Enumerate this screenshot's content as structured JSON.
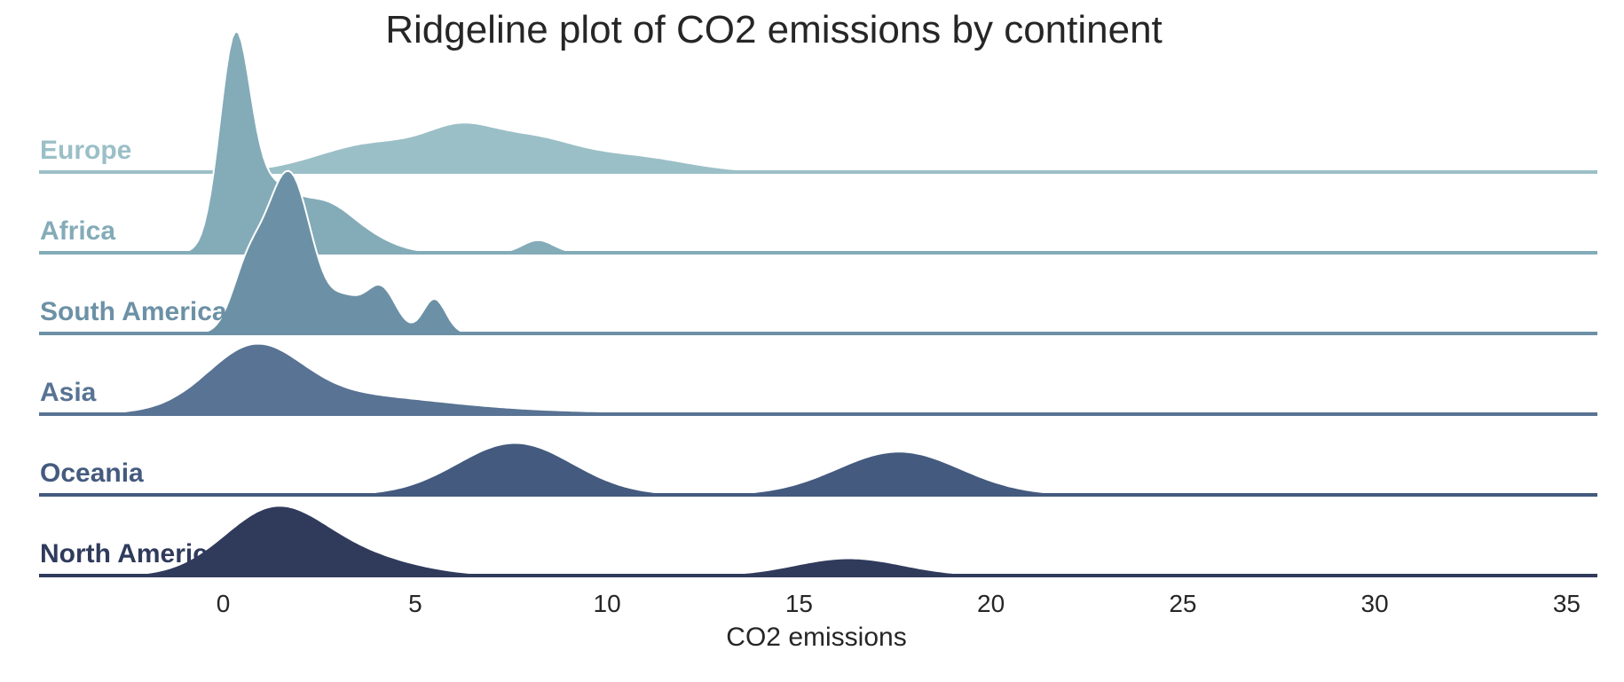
{
  "chart_data": {
    "type": "ridgeline",
    "title": "Ridgeline plot of CO2 emissions by continent",
    "xlabel": "CO2 emissions",
    "ylabel": "",
    "xlim": [
      -4.8,
      35.8
    ],
    "xticks": [
      0,
      5,
      10,
      15,
      20,
      25,
      30,
      35
    ],
    "grid": false,
    "legend": "none",
    "series": [
      {
        "name": "Europe",
        "color": "#9bbfc7",
        "peaks": [
          {
            "mu": 4.0,
            "sigma": 1.5,
            "amp": 0.5
          },
          {
            "mu": 6.2,
            "sigma": 0.9,
            "amp": 0.55
          },
          {
            "mu": 8.0,
            "sigma": 1.1,
            "amp": 0.5
          },
          {
            "mu": 10.5,
            "sigma": 1.5,
            "amp": 0.28
          }
        ]
      },
      {
        "name": "Africa",
        "color": "#84abb8",
        "peaks": [
          {
            "mu": 0.3,
            "sigma": 0.4,
            "amp": 3.5
          },
          {
            "mu": 1.2,
            "sigma": 0.6,
            "amp": 1.0
          },
          {
            "mu": 2.5,
            "sigma": 0.7,
            "amp": 0.7
          },
          {
            "mu": 3.5,
            "sigma": 0.8,
            "amp": 0.3
          },
          {
            "mu": 8.2,
            "sigma": 0.4,
            "amp": 0.22
          }
        ]
      },
      {
        "name": "South America",
        "color": "#6c91a6",
        "peaks": [
          {
            "mu": 1.7,
            "sigma": 0.6,
            "amp": 2.8
          },
          {
            "mu": 0.6,
            "sigma": 0.4,
            "amp": 0.9
          },
          {
            "mu": 3.2,
            "sigma": 0.4,
            "amp": 0.5
          },
          {
            "mu": 4.1,
            "sigma": 0.4,
            "amp": 0.8
          },
          {
            "mu": 5.5,
            "sigma": 0.3,
            "amp": 0.6
          }
        ]
      },
      {
        "name": "Asia",
        "color": "#587393",
        "peaks": [
          {
            "mu": 0.8,
            "sigma": 1.2,
            "amp": 1.0
          },
          {
            "mu": 3.0,
            "sigma": 2.5,
            "amp": 0.3
          },
          {
            "mu": 7.0,
            "sigma": 4.0,
            "amp": 0.05
          }
        ]
      },
      {
        "name": "Oceania",
        "color": "#445a7e",
        "peaks": [
          {
            "mu": 7.6,
            "sigma": 1.5,
            "amp": 0.9
          },
          {
            "mu": 17.6,
            "sigma": 1.6,
            "amp": 0.75
          }
        ]
      },
      {
        "name": "North America",
        "color": "#303b5c",
        "peaks": [
          {
            "mu": 1.3,
            "sigma": 1.3,
            "amp": 1.1
          },
          {
            "mu": 3.5,
            "sigma": 1.5,
            "amp": 0.3
          },
          {
            "mu": 16.3,
            "sigma": 1.4,
            "amp": 0.3
          }
        ]
      }
    ]
  }
}
